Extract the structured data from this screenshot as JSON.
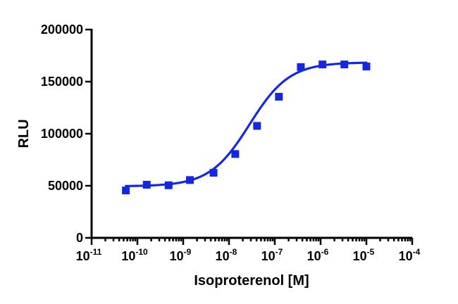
{
  "chart_data": {
    "type": "scatter",
    "xlabel": "Isoproterenol [M]",
    "ylabel": "RLU",
    "xscale": "log",
    "xlim": [
      1e-11,
      0.0001
    ],
    "ylim": [
      0,
      200000
    ],
    "x_ticks": [
      {
        "base": "10",
        "exp": "-11"
      },
      {
        "base": "10",
        "exp": "-10"
      },
      {
        "base": "10",
        "exp": "-9"
      },
      {
        "base": "10",
        "exp": "-8"
      },
      {
        "base": "10",
        "exp": "-7"
      },
      {
        "base": "10",
        "exp": "-6"
      },
      {
        "base": "10",
        "exp": "-5"
      },
      {
        "base": "10",
        "exp": "-4"
      }
    ],
    "y_ticks": [
      "0",
      "50000",
      "100000",
      "150000",
      "200000"
    ],
    "grid": false,
    "legend": "none",
    "color": "#1428e0",
    "marker": "square",
    "series": [
      {
        "x": [
          5.6e-11,
          1.6e-10,
          4.8e-10,
          1.4e-09,
          4.6e-09,
          1.37e-08,
          4.1e-08,
          1.23e-07,
          3.7e-07,
          1.1e-06,
          3.3e-06,
          1e-05
        ],
        "y": [
          45500,
          51000,
          50500,
          55500,
          62500,
          80500,
          107500,
          135500,
          164000,
          166500,
          166500,
          164500
        ]
      }
    ],
    "fit": {
      "bottom": 49500,
      "top": 168500,
      "log_ec50": -7.55,
      "hill_slope": 1.0
    }
  }
}
